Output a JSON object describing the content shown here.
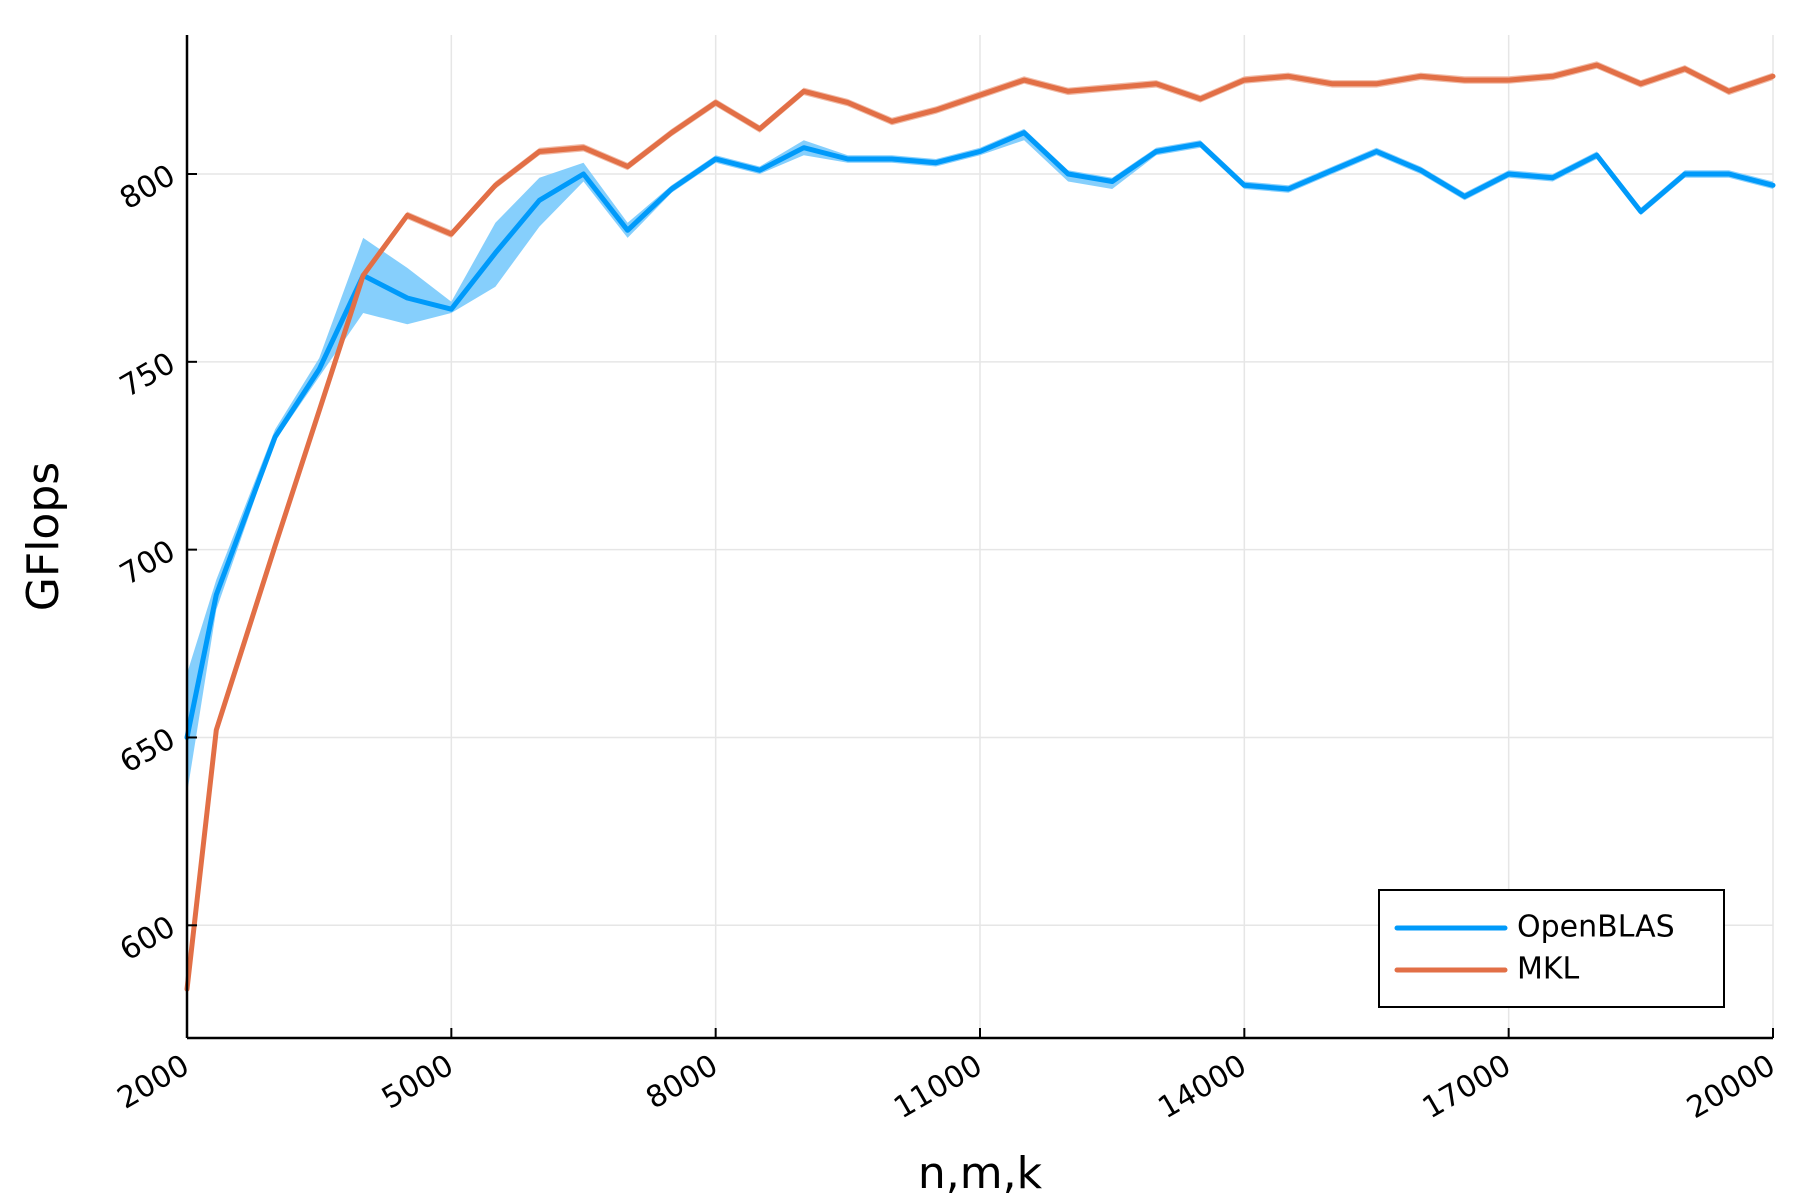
{
  "chart_data": {
    "type": "line",
    "title": "",
    "xlabel": "n,m,k",
    "ylabel": "GFlops",
    "xlim": [
      2000,
      20000
    ],
    "ylim": [
      570,
      837
    ],
    "xticks": [
      2000,
      5000,
      8000,
      11000,
      14000,
      17000,
      20000
    ],
    "yticks": [
      600,
      650,
      700,
      750,
      800
    ],
    "xtick_labels": [
      "2000",
      "5000",
      "8000",
      "11000",
      "14000",
      "17000",
      "20000"
    ],
    "ytick_labels": [
      "600",
      "650",
      "700",
      "750",
      "800"
    ],
    "grid": true,
    "legend_position": "bottom-right",
    "x": [
      2000,
      2333,
      3000,
      3500,
      4000,
      4500,
      5000,
      5500,
      6000,
      6500,
      7000,
      7500,
      8000,
      8500,
      9000,
      9500,
      10000,
      10500,
      11000,
      11500,
      12000,
      12500,
      13000,
      13500,
      14000,
      14500,
      15000,
      15500,
      16000,
      16500,
      17000,
      17500,
      18000,
      18500,
      19000,
      19500,
      20000
    ],
    "series": [
      {
        "name": "OpenBLAS",
        "color": "#009AFA",
        "band_color": "#80CCFC",
        "values": [
          650,
          688,
          730,
          748,
          773,
          767,
          764,
          779,
          793,
          800,
          785,
          796,
          804,
          801,
          807,
          804,
          804,
          803,
          806,
          811,
          800,
          798,
          806,
          808,
          797,
          796,
          801,
          806,
          801,
          794,
          800,
          799,
          805,
          790,
          800,
          800,
          797
        ],
        "lower": [
          635,
          684,
          729,
          746,
          763,
          760,
          763,
          770,
          786,
          798,
          783,
          795,
          803,
          800,
          805,
          803,
          803,
          802,
          805,
          809,
          798,
          796,
          805,
          807,
          796,
          795,
          800,
          805,
          800,
          793,
          799,
          798,
          804,
          789,
          799,
          799,
          796
        ],
        "upper": [
          667,
          692,
          732,
          751,
          783,
          775,
          766,
          787,
          799,
          803,
          787,
          797,
          805,
          802,
          809,
          805,
          805,
          804,
          807,
          812,
          801,
          799,
          807,
          809,
          798,
          797,
          802,
          807,
          802,
          795,
          801,
          800,
          806,
          791,
          801,
          801,
          798
        ]
      },
      {
        "name": "MKL",
        "color": "#E26F46",
        "band_color": "#F0B7A2",
        "values": [
          583,
          652,
          701,
          737,
          773,
          789,
          784,
          797,
          806,
          807,
          802,
          811,
          819,
          812,
          822,
          819,
          814,
          817,
          821,
          825,
          822,
          823,
          824,
          820,
          825,
          826,
          824,
          824,
          826,
          825,
          825,
          826,
          829,
          824,
          828,
          822,
          826
        ],
        "lower": [
          581,
          650,
          700,
          736,
          772,
          788,
          783,
          796,
          805,
          806,
          801,
          810,
          818,
          811,
          821,
          818,
          813,
          816,
          820,
          824,
          821,
          822,
          823,
          819,
          824,
          825,
          823,
          823,
          825,
          824,
          824,
          825,
          828,
          823,
          827,
          821,
          825
        ],
        "upper": [
          585,
          654,
          702,
          738,
          774,
          790,
          785,
          798,
          807,
          808,
          803,
          812,
          820,
          813,
          823,
          820,
          815,
          818,
          822,
          826,
          823,
          824,
          825,
          821,
          826,
          827,
          825,
          825,
          827,
          826,
          826,
          827,
          830,
          825,
          829,
          823,
          827
        ]
      }
    ]
  }
}
